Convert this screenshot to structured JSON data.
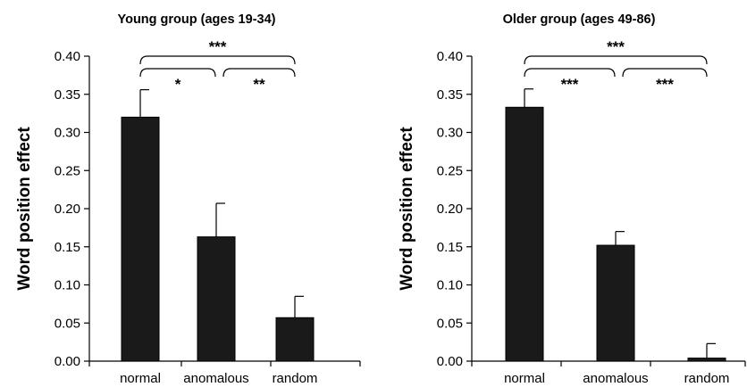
{
  "chart_data": [
    {
      "type": "bar",
      "title": "Young group (ages 19-34)",
      "ylabel": "Word position effect",
      "xlabel": "",
      "categories": [
        "normal",
        "anomalous",
        "random"
      ],
      "values": [
        0.32,
        0.163,
        0.057
      ],
      "errors": [
        0.036,
        0.044,
        0.028
      ],
      "ylim": [
        0,
        0.4
      ],
      "yticks": [
        "0.00",
        "0.05",
        "0.10",
        "0.15",
        "0.20",
        "0.25",
        "0.30",
        "0.35",
        "0.40"
      ],
      "significance": [
        {
          "from": 0,
          "to": 2,
          "label": "***"
        },
        {
          "from": 0,
          "to": 1,
          "label": "*"
        },
        {
          "from": 1,
          "to": 2,
          "label": "**"
        }
      ],
      "grid": false,
      "colors": {
        "bar": "#1a1a1a"
      }
    },
    {
      "type": "bar",
      "title": "Older group (ages 49-86)",
      "ylabel": "Word position effect",
      "xlabel": "",
      "categories": [
        "normal",
        "anomalous",
        "random"
      ],
      "values": [
        0.333,
        0.152,
        0.004
      ],
      "errors": [
        0.024,
        0.018,
        0.019
      ],
      "ylim": [
        0,
        0.4
      ],
      "yticks": [
        "0.00",
        "0.05",
        "0.10",
        "0.15",
        "0.20",
        "0.25",
        "0.30",
        "0.35",
        "0.40"
      ],
      "significance": [
        {
          "from": 0,
          "to": 2,
          "label": "***"
        },
        {
          "from": 0,
          "to": 1,
          "label": "***"
        },
        {
          "from": 1,
          "to": 2,
          "label": "***"
        }
      ],
      "grid": false,
      "colors": {
        "bar": "#1a1a1a"
      }
    }
  ]
}
